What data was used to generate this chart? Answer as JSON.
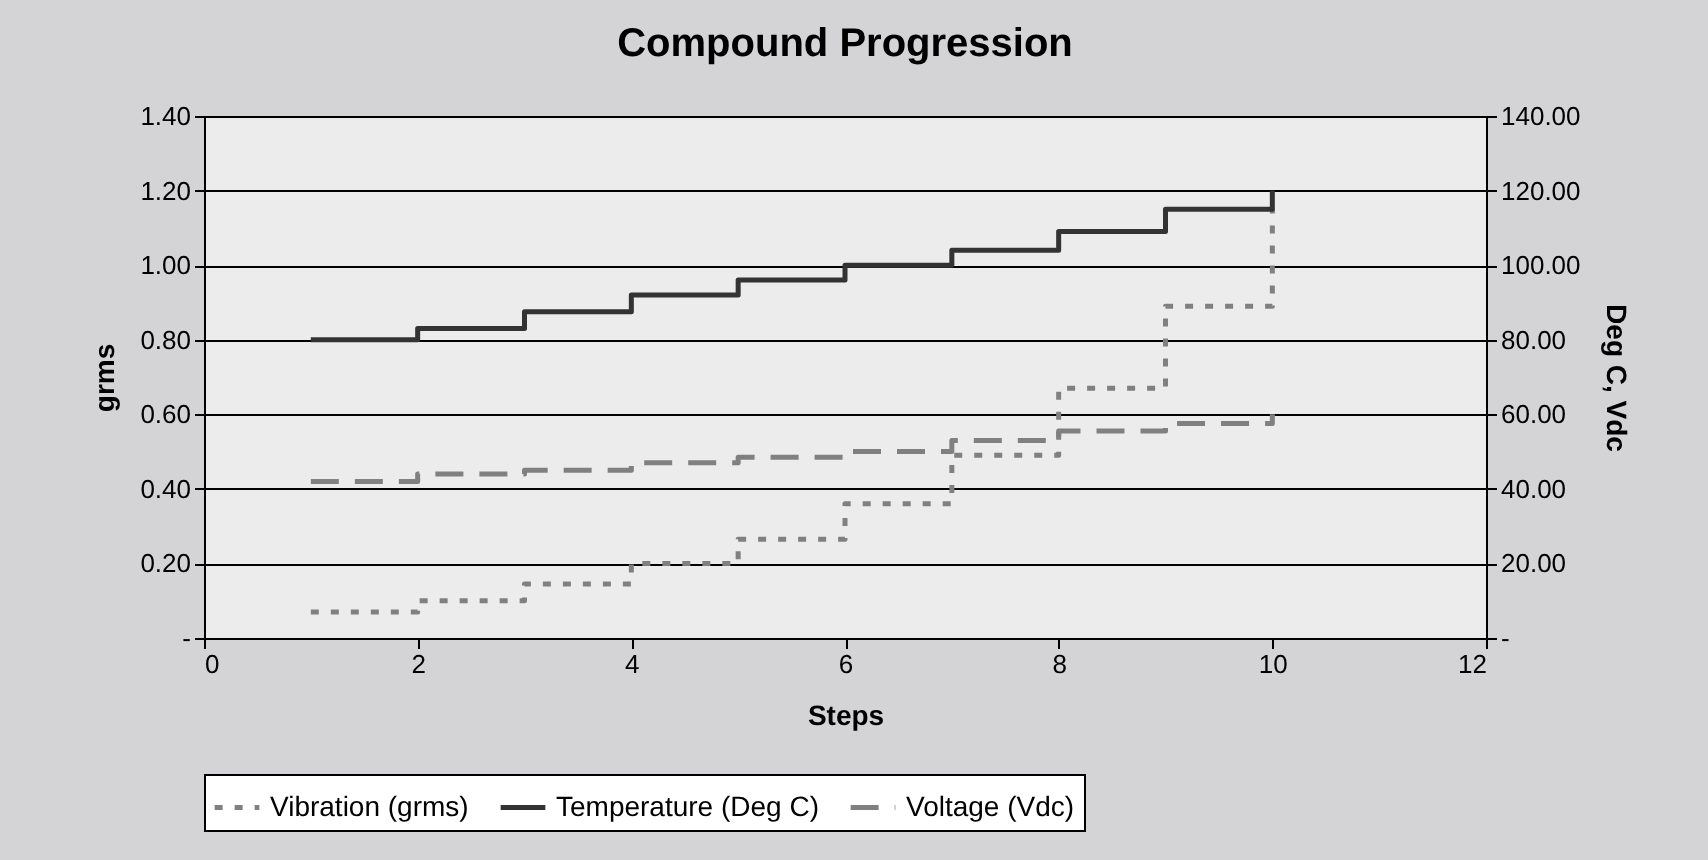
{
  "chart_data": {
    "type": "step",
    "title": "Compound Progression",
    "xlabel": "Steps",
    "ylabel": "grms",
    "y2label": "Deg C, Vdc",
    "x": [
      1,
      2,
      3,
      4,
      5,
      6,
      7,
      8,
      9,
      10
    ],
    "series": [
      {
        "name": "Vibration (grms)",
        "color": "#808080",
        "line_style": "dotted",
        "values": [
          0.07,
          0.1,
          0.145,
          0.2,
          0.265,
          0.36,
          0.49,
          0.67,
          0.89,
          1.15
        ]
      },
      {
        "name": "Temperature (Deg C)",
        "color": "#333333",
        "line_style": "solid",
        "axis": "y2",
        "values": [
          80,
          83,
          87.5,
          92,
          96,
          100,
          104,
          109,
          115,
          120
        ]
      },
      {
        "name": "Voltage (Vdc)",
        "color": "#808080",
        "line_style": "dashed",
        "axis": "y2",
        "values": [
          42,
          44,
          45,
          47,
          48.5,
          50,
          53,
          55.5,
          57.5,
          60
        ]
      }
    ],
    "xlim": [
      0,
      12
    ],
    "xticks": [
      0,
      2,
      4,
      6,
      8,
      10,
      12
    ],
    "ylim": [
      0,
      1.4
    ],
    "yticks": [
      {
        "value": 0,
        "label": "-"
      },
      {
        "value": 0.2,
        "label": "0.20"
      },
      {
        "value": 0.4,
        "label": "0.40"
      },
      {
        "value": 0.6,
        "label": "0.60"
      },
      {
        "value": 0.8,
        "label": "0.80"
      },
      {
        "value": 1,
        "label": "1.00"
      },
      {
        "value": 1.2,
        "label": "1.20"
      },
      {
        "value": 1.4,
        "label": "1.40"
      }
    ],
    "y2lim": [
      0,
      140
    ],
    "y2ticks": [
      {
        "value": 0,
        "label": "-"
      },
      {
        "value": 20,
        "label": "20.00"
      },
      {
        "value": 40,
        "label": "40.00"
      },
      {
        "value": 60,
        "label": "60.00"
      },
      {
        "value": 80,
        "label": "80.00"
      },
      {
        "value": 100,
        "label": "100.00"
      },
      {
        "value": 120,
        "label": "120.00"
      },
      {
        "value": 140,
        "label": "140.00"
      }
    ],
    "grid": "y",
    "legend": "bottom"
  }
}
